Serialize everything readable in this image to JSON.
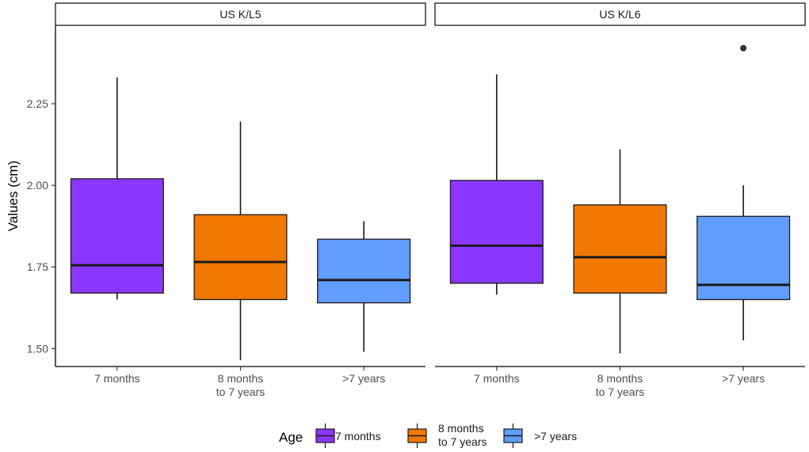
{
  "chart_data": {
    "type": "boxplot",
    "ylabel": "Values (cm)",
    "yticks": [
      "1.50",
      "1.75",
      "2.00",
      "2.25"
    ],
    "ytick_values": [
      1.5,
      1.75,
      2.0,
      2.25
    ],
    "ylim": [
      1.445,
      2.49
    ],
    "categories": [
      [
        "7 months"
      ],
      [
        "8 months",
        "to 7 years"
      ],
      [
        ">7 years"
      ]
    ],
    "colors": [
      "#8b36ff",
      "#f07800",
      "#619cff"
    ],
    "legend": {
      "title": "Age",
      "position": "bottom",
      "entries": [
        [
          "7 months"
        ],
        [
          "8 months",
          "to 7 years"
        ],
        [
          ">7 years"
        ]
      ]
    },
    "panels": [
      {
        "title": "US K/L5",
        "boxes": [
          {
            "category": "7 months",
            "min": 1.65,
            "q1": 1.67,
            "median": 1.755,
            "q3": 2.02,
            "max": 2.33,
            "outliers": []
          },
          {
            "category": "8 months to 7 years",
            "min": 1.465,
            "q1": 1.65,
            "median": 1.765,
            "q3": 1.91,
            "max": 2.195,
            "outliers": []
          },
          {
            "category": ">7 years",
            "min": 1.49,
            "q1": 1.64,
            "median": 1.71,
            "q3": 1.835,
            "max": 1.89,
            "outliers": []
          }
        ]
      },
      {
        "title": "US K/L6",
        "boxes": [
          {
            "category": "7 months",
            "min": 1.665,
            "q1": 1.7,
            "median": 1.815,
            "q3": 2.015,
            "max": 2.34,
            "outliers": []
          },
          {
            "category": "8 months to 7 years",
            "min": 1.485,
            "q1": 1.67,
            "median": 1.78,
            "q3": 1.94,
            "max": 2.11,
            "outliers": []
          },
          {
            "category": ">7 years",
            "min": 1.525,
            "q1": 1.65,
            "median": 1.695,
            "q3": 1.905,
            "max": 2.0,
            "outliers": [
              2.42
            ]
          }
        ]
      }
    ]
  }
}
